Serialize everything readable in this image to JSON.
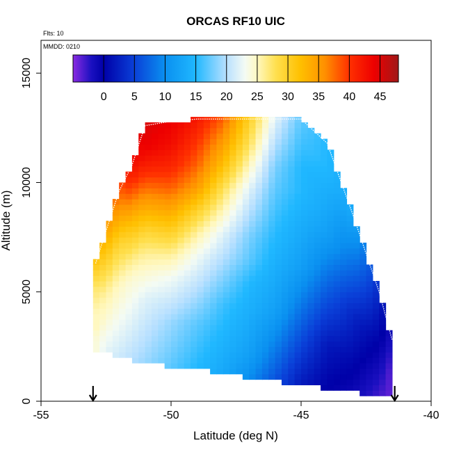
{
  "chart_data": {
    "type": "heatmap",
    "title": "ORCAS RF10 UIC",
    "annotations": {
      "flights": "Flts: 10",
      "date": "MMDD: 0210"
    },
    "xlabel": "Latitude (deg N)",
    "ylabel": "Altitude (m)",
    "xlim": [
      -55,
      -40
    ],
    "ylim": [
      0,
      16500
    ],
    "x_ticks": [
      -55,
      -50,
      -45,
      -40
    ],
    "x_tick_labels": [
      "-55",
      "-50",
      "-45",
      "-40"
    ],
    "y_ticks": [
      0,
      5000,
      10000,
      15000
    ],
    "y_tick_labels": [
      "0",
      "5000",
      "10000",
      "15000"
    ],
    "colorbar": {
      "range": [
        -5,
        48
      ],
      "ticks": [
        0,
        5,
        10,
        15,
        20,
        25,
        30,
        35,
        40,
        45
      ],
      "tick_labels": [
        "0",
        "5",
        "10",
        "15",
        "20",
        "25",
        "30",
        "35",
        "40",
        "45"
      ],
      "color_stops": [
        {
          "v": -5,
          "c": "#8a2be2"
        },
        {
          "v": -2,
          "c": "#1a10c0"
        },
        {
          "v": 0,
          "c": "#0000a8"
        },
        {
          "v": 5,
          "c": "#0a40d8"
        },
        {
          "v": 10,
          "c": "#0a90f0"
        },
        {
          "v": 15,
          "c": "#20b8ff"
        },
        {
          "v": 20,
          "c": "#b8e0ff"
        },
        {
          "v": 23,
          "c": "#f4fbf4"
        },
        {
          "v": 25,
          "c": "#fff8c0"
        },
        {
          "v": 28,
          "c": "#ffe050"
        },
        {
          "v": 32,
          "c": "#ffc000"
        },
        {
          "v": 36,
          "c": "#ff9000"
        },
        {
          "v": 40,
          "c": "#ff3000"
        },
        {
          "v": 44,
          "c": "#ee0000"
        },
        {
          "v": 48,
          "c": "#a01818"
        }
      ]
    },
    "field": {
      "description_of_regions": "",
      "profiles": [
        {
          "lat": -52.9,
          "alt_top": 6300,
          "alt_bot": 2200,
          "values_bottom_to_top": [
            24,
            24,
            25,
            25,
            26,
            27,
            29,
            31
          ]
        },
        {
          "lat": -52.5,
          "alt_top": 7800,
          "alt_bot": 2200,
          "values_bottom_to_top": [
            22,
            23,
            24,
            25,
            26,
            28,
            30,
            32,
            34
          ]
        },
        {
          "lat": -52.0,
          "alt_top": 9600,
          "alt_bot": 2000,
          "values_bottom_to_top": [
            21,
            22,
            23,
            24,
            25,
            27,
            29,
            32,
            35,
            38
          ]
        },
        {
          "lat": -51.5,
          "alt_top": 10800,
          "alt_bot": 1900,
          "values_bottom_to_top": [
            20,
            21,
            22,
            23,
            24,
            26,
            29,
            32,
            36,
            40,
            43
          ]
        },
        {
          "lat": -51.0,
          "alt_top": 12600,
          "alt_bot": 1800,
          "values_bottom_to_top": [
            19,
            20,
            21,
            22,
            24,
            26,
            29,
            33,
            37,
            41,
            44,
            45
          ]
        },
        {
          "lat": -50.0,
          "alt_top": 12800,
          "alt_bot": 1600,
          "values_bottom_to_top": [
            17,
            18,
            19,
            21,
            23,
            26,
            30,
            34,
            38,
            41,
            43,
            44
          ]
        },
        {
          "lat": -49.0,
          "alt_top": 12900,
          "alt_bot": 1500,
          "values_bottom_to_top": [
            15,
            16,
            17,
            19,
            21,
            23,
            26,
            30,
            35,
            38,
            40,
            42
          ]
        },
        {
          "lat": -48.0,
          "alt_top": 12900,
          "alt_bot": 1300,
          "values_bottom_to_top": [
            13,
            14,
            15,
            16,
            18,
            20,
            22,
            25,
            28,
            32,
            35,
            38
          ]
        },
        {
          "lat": -47.0,
          "alt_top": 12900,
          "alt_bot": 1100,
          "values_bottom_to_top": [
            10,
            12,
            13,
            14,
            15,
            17,
            18,
            20,
            22,
            25,
            28,
            30
          ]
        },
        {
          "lat": -46.0,
          "alt_top": 12900,
          "alt_bot": 900,
          "values_bottom_to_top": [
            6,
            8,
            10,
            12,
            13,
            14,
            15,
            16,
            17,
            18,
            20,
            22
          ]
        },
        {
          "lat": -45.0,
          "alt_top": 12900,
          "alt_bot": 800,
          "values_bottom_to_top": [
            2,
            4,
            6,
            8,
            10,
            12,
            13,
            14,
            15,
            15,
            16,
            17
          ]
        },
        {
          "lat": -44.0,
          "alt_top": 11800,
          "alt_bot": 600,
          "values_bottom_to_top": [
            0,
            1,
            2,
            4,
            6,
            8,
            10,
            12,
            13,
            14,
            15,
            15
          ]
        },
        {
          "lat": -43.0,
          "alt_top": 8500,
          "alt_bot": 400,
          "values_bottom_to_top": [
            -1,
            0,
            1,
            2,
            3,
            5,
            7,
            9,
            11,
            13
          ]
        },
        {
          "lat": -42.0,
          "alt_top": 5000,
          "alt_bot": 300,
          "values_bottom_to_top": [
            -3,
            -2,
            -1,
            0,
            1,
            2,
            3
          ]
        },
        {
          "lat": -41.5,
          "alt_top": 2800,
          "alt_bot": 300,
          "values_bottom_to_top": [
            -4,
            -4,
            -3,
            -2
          ]
        }
      ]
    },
    "flight_track_color": "#ffffff",
    "markers": [
      {
        "type": "arrow-down",
        "lat": -53.0
      },
      {
        "type": "arrow-down",
        "lat": -41.4
      }
    ]
  }
}
